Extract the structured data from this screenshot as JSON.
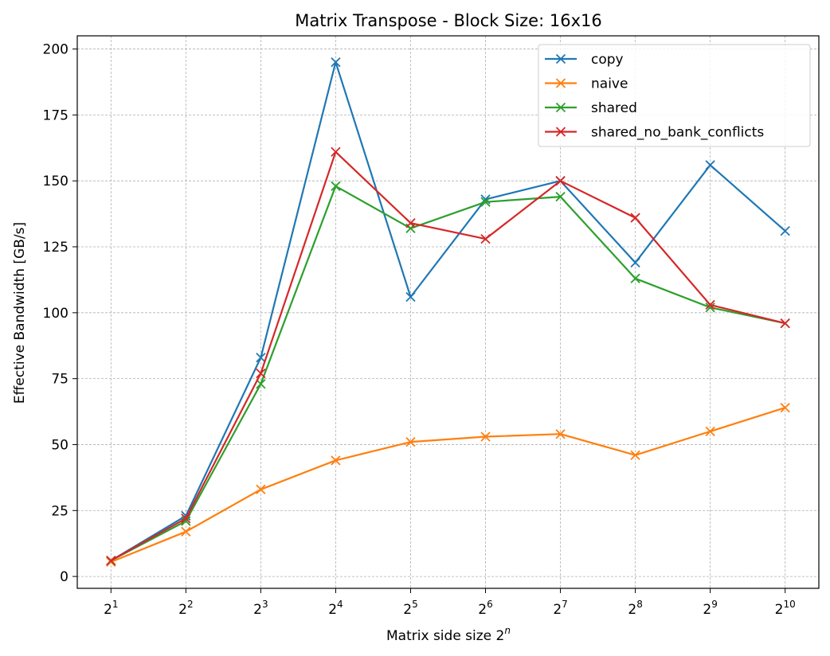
{
  "chart_data": {
    "type": "line",
    "title": "Matrix Transpose - Block Size: 16x16",
    "xlabel": {
      "base": "Matrix side size 2",
      "sup": "n"
    },
    "ylabel": "Effective Bandwidth [GB/s]",
    "x": [
      1,
      2,
      3,
      4,
      5,
      6,
      7,
      8,
      9,
      10
    ],
    "x_tick_labels": [
      {
        "base": "2",
        "sup": "1"
      },
      {
        "base": "2",
        "sup": "2"
      },
      {
        "base": "2",
        "sup": "3"
      },
      {
        "base": "2",
        "sup": "4"
      },
      {
        "base": "2",
        "sup": "5"
      },
      {
        "base": "2",
        "sup": "6"
      },
      {
        "base": "2",
        "sup": "7"
      },
      {
        "base": "2",
        "sup": "8"
      },
      {
        "base": "2",
        "sup": "9"
      },
      {
        "base": "2",
        "sup": "10"
      }
    ],
    "y_ticks": [
      0,
      25,
      50,
      75,
      100,
      125,
      150,
      175,
      200
    ],
    "y_tick_labels": [
      "0",
      "25",
      "50",
      "75",
      "100",
      "125",
      "150",
      "175",
      "200"
    ],
    "xlim": [
      0.55,
      10.45
    ],
    "ylim": [
      -4.5,
      205
    ],
    "grid": true,
    "marker": "x",
    "legend_position": "top-right",
    "series": [
      {
        "name": "copy",
        "color": "#1f77b4",
        "values": [
          6,
          23,
          83,
          195,
          106,
          143,
          150,
          119,
          156,
          131
        ]
      },
      {
        "name": "naive",
        "color": "#ff7f0e",
        "values": [
          5.5,
          17,
          33,
          44,
          51,
          53,
          54,
          46,
          55,
          64
        ]
      },
      {
        "name": "shared",
        "color": "#2ca02c",
        "values": [
          6,
          21,
          73,
          148,
          132,
          142,
          144,
          113,
          102,
          96
        ]
      },
      {
        "name": "shared_no_bank_conflicts",
        "color": "#d62728",
        "values": [
          6,
          22,
          77,
          161,
          134,
          128,
          150,
          136,
          103,
          96
        ]
      }
    ]
  }
}
